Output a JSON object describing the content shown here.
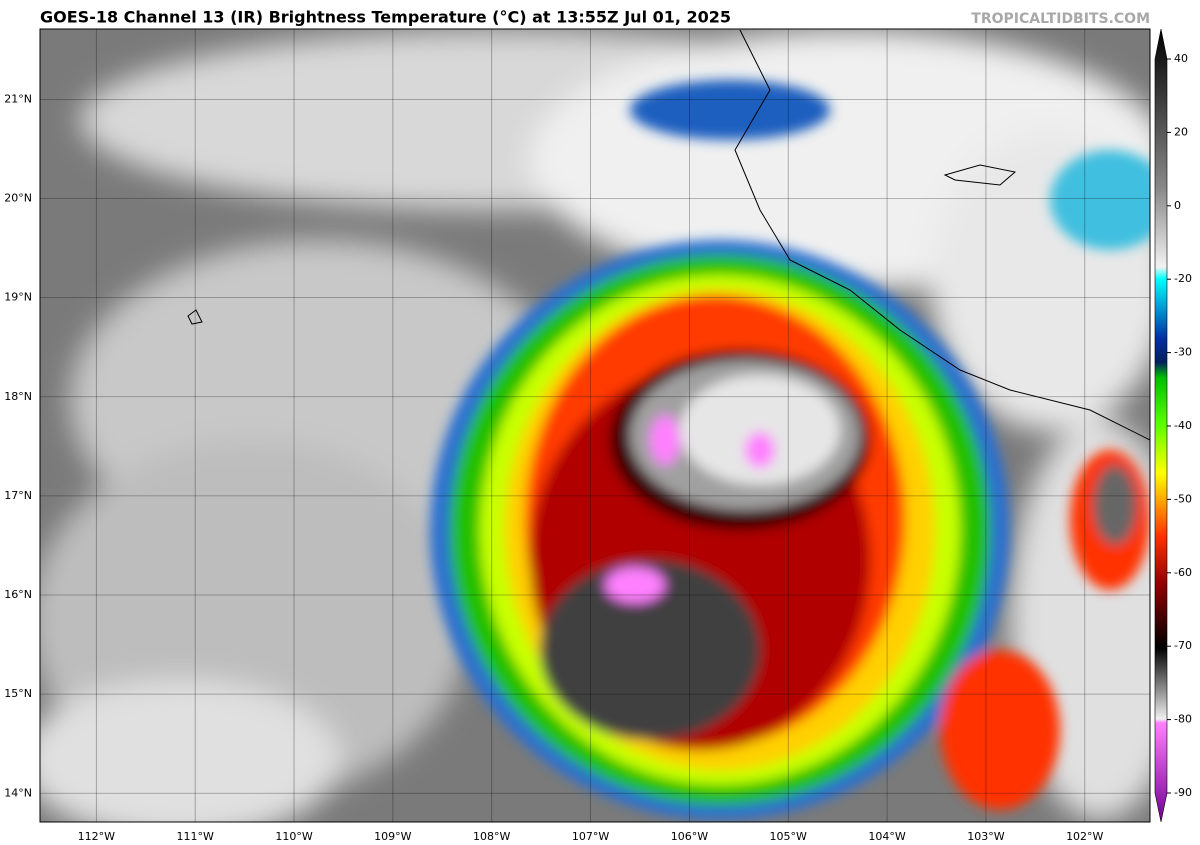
{
  "header": {
    "title": "GOES-18 Channel 13 (IR) Brightness Temperature (°C) at 13:55Z Jul 01, 2025",
    "watermark": "TROPICALTIDBITS.COM"
  },
  "map": {
    "xlim": [
      -112.57,
      -101.34
    ],
    "ylim": [
      13.71,
      21.71
    ],
    "xticks": [
      {
        "value": -112,
        "label": "112°W"
      },
      {
        "value": -111,
        "label": "111°W"
      },
      {
        "value": -110,
        "label": "110°W"
      },
      {
        "value": -109,
        "label": "109°W"
      },
      {
        "value": -108,
        "label": "108°W"
      },
      {
        "value": -107,
        "label": "107°W"
      },
      {
        "value": -106,
        "label": "106°W"
      },
      {
        "value": -105,
        "label": "105°W"
      },
      {
        "value": -104,
        "label": "104°W"
      },
      {
        "value": -103,
        "label": "103°W"
      },
      {
        "value": -102,
        "label": "102°W"
      }
    ],
    "yticks": [
      {
        "value": 14,
        "label": "14°N"
      },
      {
        "value": 15,
        "label": "15°N"
      },
      {
        "value": 16,
        "label": "16°N"
      },
      {
        "value": 17,
        "label": "17°N"
      },
      {
        "value": 18,
        "label": "18°N"
      },
      {
        "value": 19,
        "label": "19°N"
      },
      {
        "value": 20,
        "label": "20°N"
      },
      {
        "value": 21,
        "label": "21°N"
      }
    ]
  },
  "colorbar": {
    "ticks": [
      40,
      20,
      0,
      -20,
      -30,
      -40,
      -50,
      -60,
      -70,
      -80,
      -90
    ]
  }
}
